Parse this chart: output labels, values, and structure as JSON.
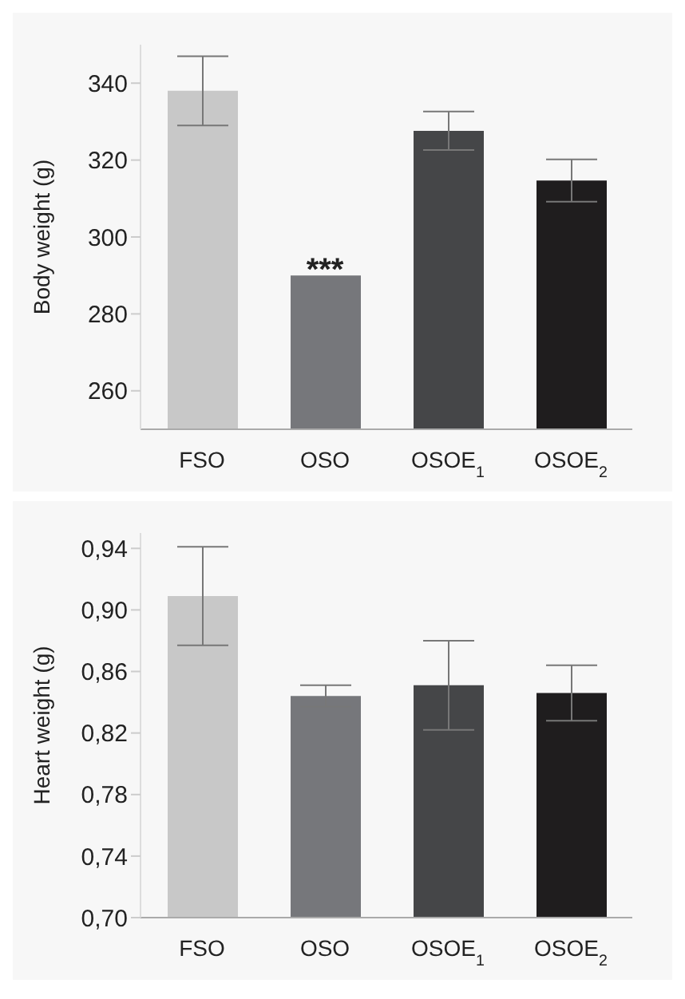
{
  "chart_data": [
    {
      "type": "bar",
      "ylabel": "Body weight (g)",
      "categories": [
        "FSO",
        "OSO",
        "OSOE$_{1}$",
        "OSOE$_{2}$"
      ],
      "values": [
        338,
        290,
        327.6,
        314.7
      ],
      "colors": [
        "#c8c8c8",
        "#76777b",
        "#454648",
        "#1f1d1e"
      ],
      "errors": [
        9,
        null,
        5,
        5.5
      ],
      "ylim": [
        250,
        350
      ],
      "yticks": [
        260,
        280,
        300,
        320,
        340
      ],
      "grid": false,
      "annotations": [
        {
          "text": "***",
          "x": "OSO",
          "y": 290
        }
      ]
    },
    {
      "type": "bar",
      "ylabel": "Heart weight (g)",
      "categories": [
        "FSO",
        "OSO",
        "OSOE$_{1}$",
        "OSOE$_{2}$"
      ],
      "values": [
        0.909,
        0.844,
        0.851,
        0.846
      ],
      "colors": [
        "#c8c8c8",
        "#76777b",
        "#454648",
        "#1f1d1e"
      ],
      "errors": [
        0.032,
        0.007,
        0.029,
        0.018
      ],
      "ylim": [
        0.7,
        0.95
      ],
      "yticks": [
        {
          "value": 0.7,
          "label": "0,70"
        },
        {
          "value": 0.74,
          "label": "0,74"
        },
        {
          "value": 0.78,
          "label": "0,78"
        },
        {
          "value": 0.82,
          "label": "0,82"
        },
        {
          "value": 0.86,
          "label": "0,86"
        },
        {
          "value": 0.9,
          "label": "0,90"
        },
        {
          "value": 0.94,
          "label": "0,94"
        }
      ],
      "grid": false
    }
  ]
}
